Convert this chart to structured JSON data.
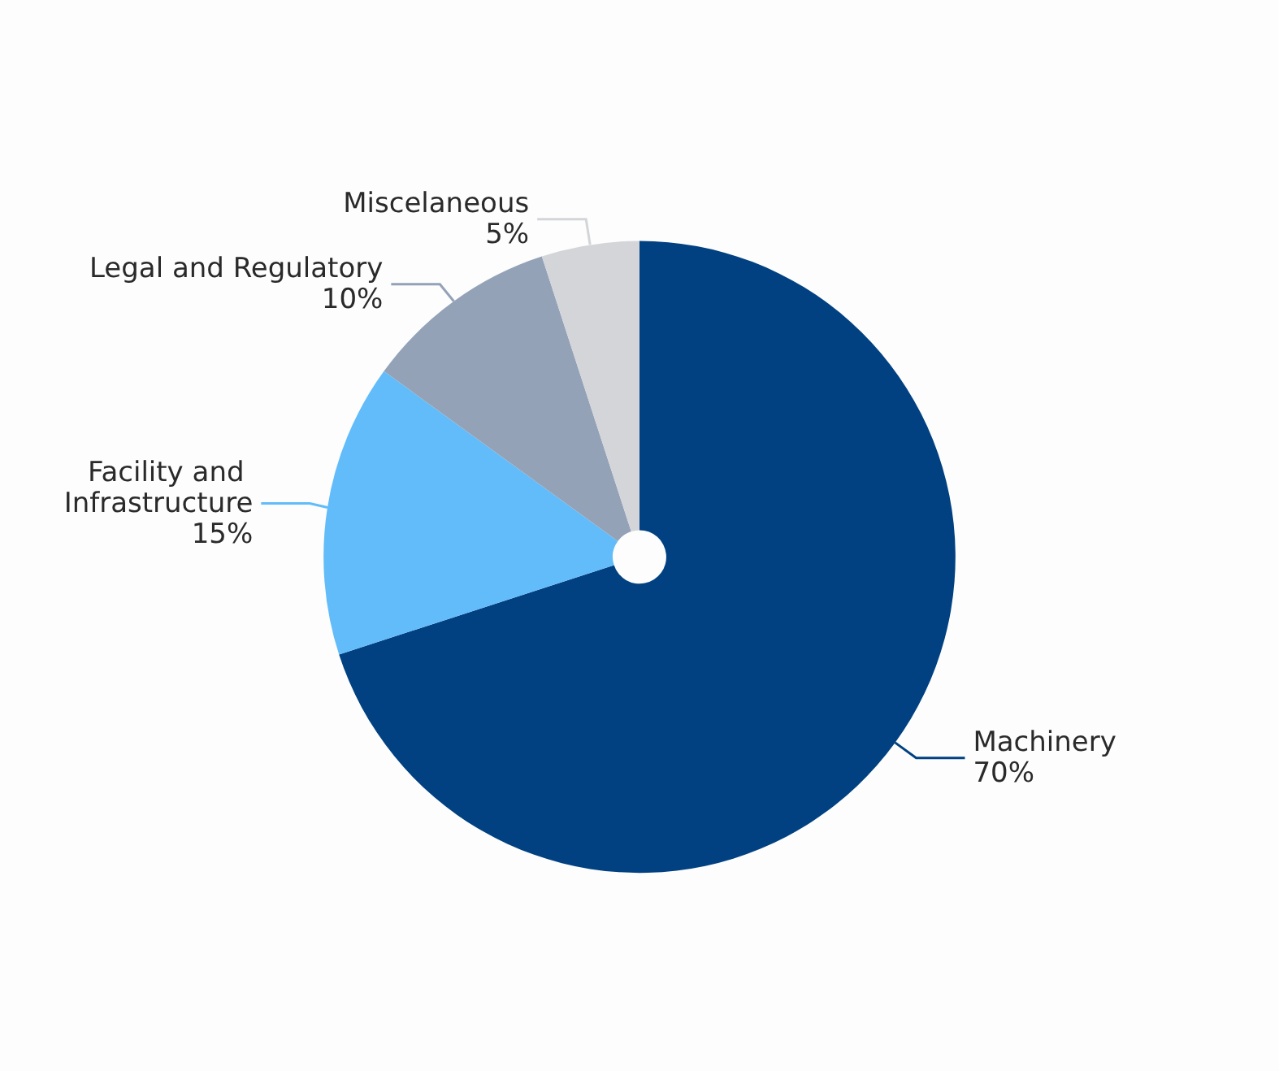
{
  "chart_data": {
    "type": "pie",
    "categories": [
      "Machinery",
      "Facility and Infrastructure",
      "Legal and Regulatory",
      "Miscelaneous"
    ],
    "values": [
      70,
      15,
      10,
      5
    ],
    "value_labels": [
      "70%",
      "15%",
      "10%",
      "5%"
    ],
    "colors": [
      "#014182",
      "#62bcfa",
      "#94a2b8",
      "#d3d5d9"
    ],
    "legend": false
  }
}
